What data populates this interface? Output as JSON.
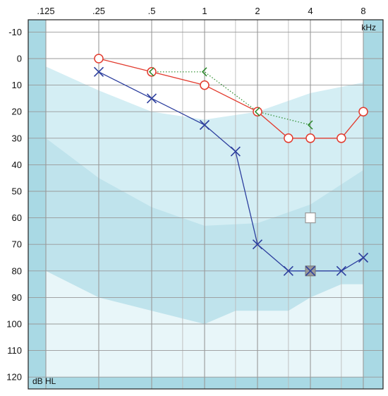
{
  "chart_data": {
    "type": "line",
    "title": "",
    "x_scale": "log",
    "x_ticks": [
      {
        "label": ".125",
        "value": 0.125
      },
      {
        "label": ".25",
        "value": 0.25
      },
      {
        "label": ".5",
        "value": 0.5
      },
      {
        "label": "1",
        "value": 1
      },
      {
        "label": "2",
        "value": 2
      },
      {
        "label": "4",
        "value": 4
      },
      {
        "label": "8",
        "value": 8
      }
    ],
    "x_intermediate_lines": [
      0.75,
      1.5,
      3,
      6
    ],
    "x_unit_label": "kHz",
    "y_ticks": [
      "-10",
      "0",
      "10",
      "20",
      "30",
      "40",
      "50",
      "60",
      "70",
      "80",
      "90",
      "100",
      "110",
      "120"
    ],
    "ylim": [
      -10,
      120
    ],
    "y_inverted": true,
    "y_unit_label": "dB HL",
    "grid": true,
    "colors": {
      "background": "#ffffff",
      "side_bands": "#a9d9e4",
      "band_light": "#d4eef4",
      "band_mid": "#bfe3ec",
      "band_dark": "#a9d9e4",
      "band_pale": "#e8f6f9",
      "gridline": "#999999",
      "frame": "#222222",
      "red": "#e23b2e",
      "blue": "#2d3f9e",
      "green": "#2a8a2a",
      "gray_marker": "#999999"
    },
    "bands": [
      {
        "name": "band-1",
        "fill": "#d4eef4",
        "points": [
          [
            0.125,
            3
          ],
          [
            0.25,
            12
          ],
          [
            0.5,
            20
          ],
          [
            1,
            23
          ],
          [
            2,
            20
          ],
          [
            4,
            13
          ],
          [
            8,
            9
          ]
        ]
      },
      {
        "name": "band-2",
        "fill": "#bfe3ec",
        "points": [
          [
            0.125,
            30
          ],
          [
            0.25,
            45
          ],
          [
            0.5,
            56
          ],
          [
            1,
            63
          ],
          [
            2,
            62
          ],
          [
            4,
            55
          ],
          [
            8,
            42
          ]
        ]
      },
      {
        "name": "band-3",
        "fill": "#e8f6f9",
        "points": [
          [
            0.125,
            80
          ],
          [
            0.25,
            90
          ],
          [
            0.5,
            95
          ],
          [
            1,
            100
          ],
          [
            1.5,
            95
          ],
          [
            2,
            95
          ],
          [
            3,
            95
          ],
          [
            4,
            90
          ],
          [
            6,
            85
          ],
          [
            8,
            85
          ]
        ]
      },
      {
        "name": "band-4",
        "fill": "#a9d9e4",
        "points": [
          [
            0.125,
            120
          ],
          [
            8,
            120
          ]
        ]
      }
    ],
    "series": [
      {
        "marker": "circle",
        "line": "solid",
        "color": "#e23b2e",
        "points": [
          [
            0.25,
            0
          ],
          [
            0.5,
            5
          ],
          [
            1,
            10
          ],
          [
            2,
            20
          ],
          [
            3,
            30
          ],
          [
            4,
            30
          ],
          [
            6,
            30
          ],
          [
            8,
            20
          ]
        ]
      },
      {
        "marker": "x",
        "line": "solid",
        "color": "#2d3f9e",
        "points": [
          [
            0.25,
            5
          ],
          [
            0.5,
            15
          ],
          [
            1,
            25
          ],
          [
            1.5,
            35
          ],
          [
            2,
            70
          ],
          [
            3,
            80
          ],
          [
            4,
            80
          ],
          [
            6,
            80
          ],
          [
            8,
            75
          ]
        ]
      },
      {
        "marker": "bracket-left",
        "line": "dotted",
        "color": "#2a8a2a",
        "points": [
          [
            0.5,
            5
          ],
          [
            1,
            5
          ],
          [
            2,
            20
          ],
          [
            4,
            25
          ]
        ]
      }
    ],
    "extra_markers": [
      {
        "name": "open-square-marker",
        "shape": "square-open",
        "color": "#999999",
        "x": 4,
        "y": 60
      },
      {
        "name": "filled-square-marker",
        "shape": "square-filled",
        "color": "#999999",
        "x": 4,
        "y": 80
      }
    ]
  }
}
